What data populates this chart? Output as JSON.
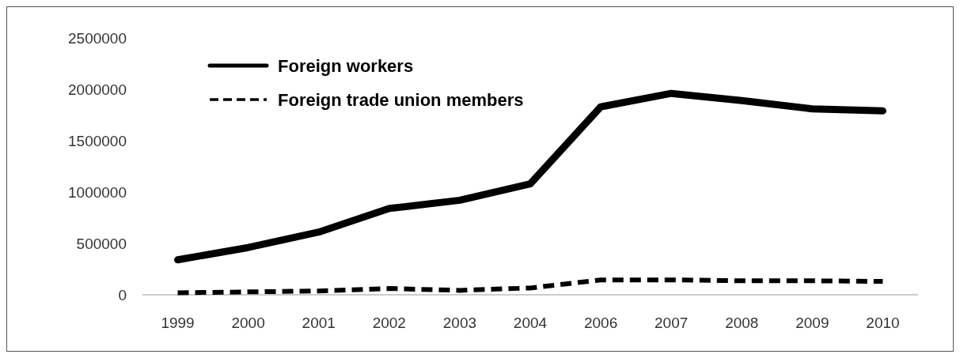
{
  "chart_data": {
    "type": "line",
    "categories": [
      "1999",
      "2000",
      "2001",
      "2002",
      "2003",
      "2004",
      "2006",
      "2007",
      "2008",
      "2009",
      "2010"
    ],
    "series": [
      {
        "name": "Foreign workers",
        "color": "#000000",
        "line_style": "solid",
        "values": [
          340000,
          460000,
          610000,
          840000,
          920000,
          1080000,
          1830000,
          1960000,
          1890000,
          1810000,
          1790000
        ]
      },
      {
        "name": "Foreign trade union members",
        "color": "#000000",
        "line_style": "dashed",
        "values": [
          20000,
          28000,
          37000,
          61000,
          43000,
          66000,
          145000,
          145000,
          136000,
          136000,
          130000
        ]
      }
    ],
    "ylim": [
      0,
      2500000
    ],
    "yticks": [
      0,
      500000,
      1000000,
      1500000,
      2000000,
      2500000
    ],
    "grid": false,
    "legend": "top left",
    "marker": "none"
  }
}
